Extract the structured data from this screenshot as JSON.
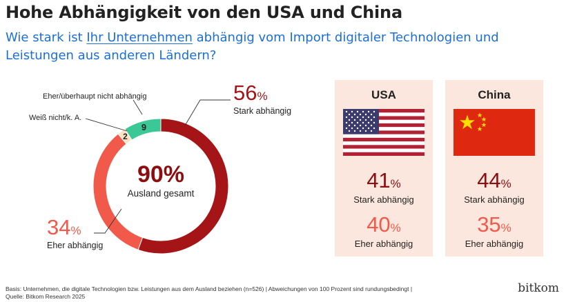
{
  "title": "Hohe Abhängigkeit von den USA und China",
  "subtitle": {
    "part1": "Wie stark ist ",
    "highlight": "Ihr Unternehmen",
    "part2": " abhängig vom Import digitaler Technologien und Leistungen aus anderen Ländern?"
  },
  "colors": {
    "strong": "#a51416",
    "somewhat": "#f1594a",
    "unknown": "#fbe3c2",
    "not": "#3cc896",
    "accent_dark": "#8b0e10",
    "accent_light": "#f1594a",
    "subtitle": "#1a6fd6",
    "panel_bg": "#fbe7dd"
  },
  "chart_data": [
    {
      "type": "pie",
      "donut": true,
      "title": "",
      "center": {
        "value": "90%",
        "label": "Ausland gesamt"
      },
      "slices": [
        {
          "label": "Stark abhängig",
          "value": 56,
          "display": "56",
          "unit": "%"
        },
        {
          "label": "Eher abhängig",
          "value": 34,
          "display": "34",
          "unit": "%"
        },
        {
          "label": "Weiß nicht/k. A.",
          "value": 2,
          "display": "2",
          "unit": ""
        },
        {
          "label": "Eher/überhaupt nicht abhängig",
          "value": 9,
          "display": "9",
          "unit": ""
        }
      ]
    },
    {
      "type": "table",
      "title": "USA",
      "flag_icon": "us-flag-icon",
      "rows": [
        {
          "label": "Stark abhängig",
          "value": 41,
          "display": "41",
          "unit": "%"
        },
        {
          "label": "Eher abhängig",
          "value": 40,
          "display": "40",
          "unit": "%"
        }
      ]
    },
    {
      "type": "table",
      "title": "China",
      "flag_icon": "china-flag-icon",
      "rows": [
        {
          "label": "Stark abhängig",
          "value": 44,
          "display": "44",
          "unit": "%"
        },
        {
          "label": "Eher abhängig",
          "value": 35,
          "display": "35",
          "unit": "%"
        }
      ]
    }
  ],
  "footer": {
    "line1": "Basis: Unternehmen, die digitale Technologien bzw. Leistungen aus dem Ausland beziehen (n=526) | Abweichungen von 100 Prozent sind rundungsbedingt |",
    "line2": "Quelle: Bitkom Research 2025"
  },
  "brand": "bitkom"
}
